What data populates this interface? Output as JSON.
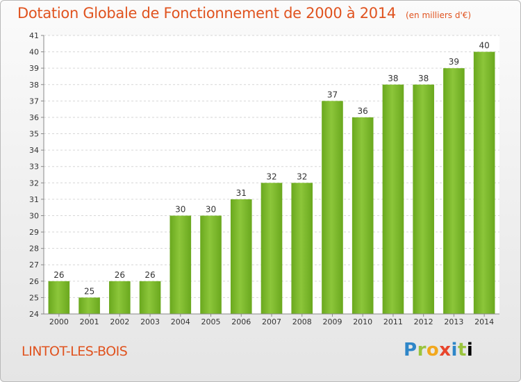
{
  "chart_data": {
    "type": "bar",
    "title": "Dotation Globale de Fonctionnement de 2000 à 2014",
    "subtitle": "(en milliers d'€)",
    "categories": [
      "2000",
      "2001",
      "2002",
      "2003",
      "2004",
      "2005",
      "2006",
      "2007",
      "2008",
      "2009",
      "2010",
      "2011",
      "2012",
      "2013",
      "2014"
    ],
    "values": [
      26,
      25,
      26,
      26,
      30,
      30,
      31,
      32,
      32,
      37,
      36,
      38,
      38,
      39,
      40
    ],
    "ylim": [
      24,
      41
    ],
    "yticks": [
      24,
      25,
      26,
      27,
      28,
      29,
      30,
      31,
      32,
      33,
      34,
      35,
      36,
      37,
      38,
      39,
      40,
      41
    ],
    "grid": true,
    "bar_color": "#7ab82a"
  },
  "footer": {
    "commune": "LINTOT-LES-BOIS",
    "logo": [
      "P",
      "r",
      "o",
      "x",
      "i",
      "t",
      "i"
    ]
  }
}
